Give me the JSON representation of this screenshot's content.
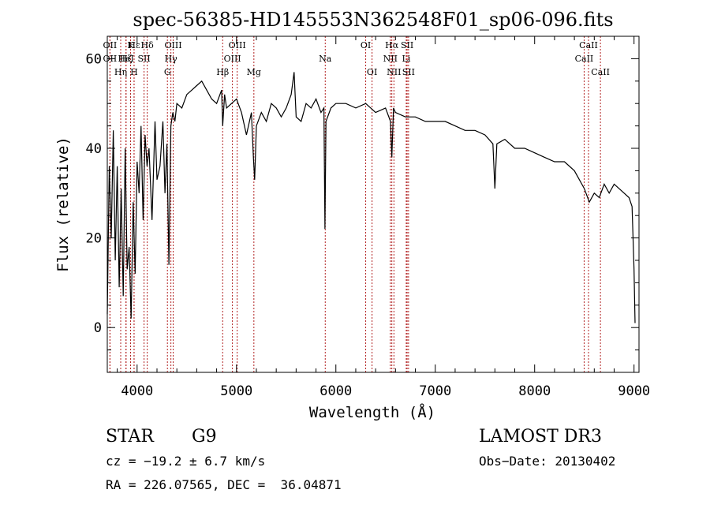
{
  "chart_data": {
    "type": "line",
    "title": "spec-56385-HD145553N362548F01_sp06-096.fits",
    "xlabel": "Wavelength (Å)",
    "ylabel": "Flux (relative)",
    "xlim": [
      3700,
      9050
    ],
    "ylim": [
      -10,
      65
    ],
    "xticks": [
      4000,
      5000,
      6000,
      7000,
      8000,
      9000
    ],
    "yticks": [
      0,
      20,
      40,
      60
    ],
    "grid": false,
    "line_color": "#000000",
    "marker_color": "#b22222",
    "series": [
      {
        "x": [
          3700,
          3720,
          3740,
          3760,
          3780,
          3800,
          3820,
          3840,
          3860,
          3880,
          3900,
          3920,
          3940,
          3960,
          3980,
          4000,
          4020,
          4040,
          4060,
          4080,
          4100,
          4120,
          4150,
          4180,
          4200,
          4230,
          4260,
          4280,
          4300,
          4320,
          4340,
          4360,
          4380,
          4400,
          4450,
          4500,
          4550,
          4600,
          4650,
          4700,
          4750,
          4800,
          4850,
          4861,
          4880,
          4900,
          4950,
          5000,
          5050,
          5100,
          5150,
          5170,
          5183,
          5200,
          5250,
          5300,
          5350,
          5400,
          5450,
          5500,
          5550,
          5580,
          5600,
          5650,
          5700,
          5750,
          5800,
          5850,
          5880,
          5890,
          5900,
          5950,
          6000,
          6100,
          6200,
          6300,
          6400,
          6500,
          6550,
          6563,
          6580,
          6600,
          6700,
          6800,
          6900,
          7000,
          7100,
          7200,
          7300,
          7400,
          7500,
          7580,
          7600,
          7620,
          7700,
          7800,
          7900,
          8000,
          8100,
          8200,
          8300,
          8400,
          8500,
          8550,
          8600,
          8650,
          8700,
          8750,
          8800,
          8850,
          8900,
          8950,
          8980,
          9000,
          9010
        ],
        "y": [
          3,
          36,
          20,
          44,
          15,
          36,
          9,
          31,
          7,
          40,
          13,
          18,
          2,
          28,
          12,
          37,
          30,
          45,
          24,
          43,
          36,
          40,
          24,
          46,
          33,
          36,
          46,
          30,
          41,
          14,
          45,
          48,
          46,
          50,
          49,
          52,
          53,
          54,
          55,
          53,
          51,
          50,
          53,
          45,
          52,
          49,
          50,
          51,
          48,
          43,
          48,
          38,
          33,
          45,
          48,
          46,
          50,
          49,
          47,
          49,
          52,
          57,
          47,
          46,
          50,
          49,
          51,
          48,
          49,
          22,
          46,
          49,
          50,
          50,
          49,
          50,
          48,
          49,
          46,
          38,
          49,
          48,
          47,
          47,
          46,
          46,
          46,
          45,
          44,
          44,
          43,
          41,
          31,
          41,
          42,
          40,
          40,
          39,
          38,
          37,
          37,
          35,
          31,
          28,
          30,
          29,
          32,
          30,
          32,
          31,
          30,
          29,
          27,
          13,
          1
        ]
      }
    ],
    "lines": [
      {
        "name": "Hε",
        "lambda": 3970,
        "row": 0
      },
      {
        "name": "Hζ",
        "lambda": 3889,
        "row": 1
      },
      {
        "name": "OII",
        "lambda": 3727,
        "row": 0
      },
      {
        "name": "OII",
        "lambda": 3727,
        "row": 1
      },
      {
        "name": "K",
        "lambda": 3934,
        "row": 0
      },
      {
        "name": "HeI",
        "lambda": 3888,
        "row": 1
      },
      {
        "name": "Hδ",
        "lambda": 4102,
        "row": 0
      },
      {
        "name": "SII",
        "lambda": 4070,
        "row": 1
      },
      {
        "name": "Hη",
        "lambda": 3835,
        "row": 2
      },
      {
        "name": "H",
        "lambda": 3969,
        "row": 2
      },
      {
        "name": "OIII",
        "lambda": 4363,
        "row": 0
      },
      {
        "name": "Hγ",
        "lambda": 4340,
        "row": 1
      },
      {
        "name": "G",
        "lambda": 4305,
        "row": 2
      },
      {
        "name": "Hβ",
        "lambda": 4861,
        "row": 2
      },
      {
        "name": "OIII",
        "lambda": 5007,
        "row": 0
      },
      {
        "name": "OIII",
        "lambda": 4959,
        "row": 1
      },
      {
        "name": "Mg",
        "lambda": 5175,
        "row": 2
      },
      {
        "name": "Na",
        "lambda": 5893,
        "row": 1
      },
      {
        "name": "OI",
        "lambda": 6300,
        "row": 0
      },
      {
        "name": "OI",
        "lambda": 6364,
        "row": 2
      },
      {
        "name": "Hα",
        "lambda": 6563,
        "row": 0
      },
      {
        "name": "SII",
        "lambda": 6717,
        "row": 0
      },
      {
        "name": "NII",
        "lambda": 6548,
        "row": 1
      },
      {
        "name": "Li",
        "lambda": 6708,
        "row": 1
      },
      {
        "name": "NII",
        "lambda": 6584,
        "row": 2
      },
      {
        "name": "SII",
        "lambda": 6731,
        "row": 2
      },
      {
        "name": "CaII",
        "lambda": 8542,
        "row": 0
      },
      {
        "name": "CaII",
        "lambda": 8498,
        "row": 1
      },
      {
        "name": "CaII",
        "lambda": 8662,
        "row": 2
      }
    ]
  },
  "info": {
    "class": "STAR",
    "subclass": "G9",
    "survey": "LAMOST DR3",
    "redshift": "cz = −19.2 ± 6.7 km/s",
    "obs_date": "Obs−Date: 20130402",
    "coords": "RA = 226.07565, DEC =  36.04871"
  }
}
